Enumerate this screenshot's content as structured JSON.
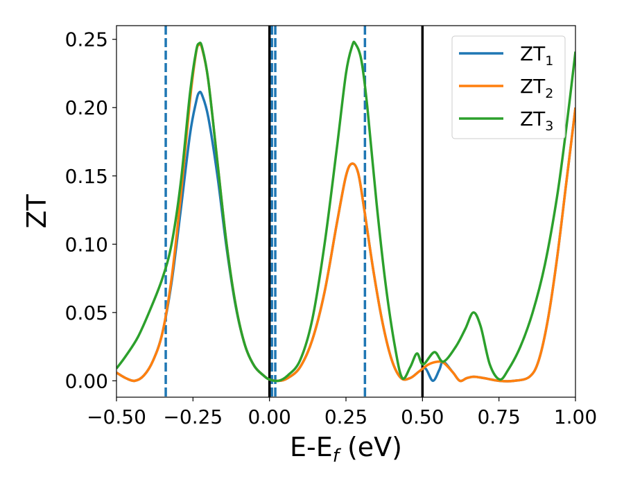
{
  "chart_data": {
    "type": "line",
    "title": "",
    "xlabel": "E-E_f (eV)",
    "xlabel_main": "E-E",
    "xlabel_sub": "f",
    "xlabel_tail": " (eV)",
    "ylabel": "ZT",
    "xlim": [
      -0.5,
      1.0
    ],
    "ylim": [
      -0.012,
      0.26
    ],
    "xticks": [
      -0.5,
      -0.25,
      0.0,
      0.25,
      0.5,
      0.75,
      1.0
    ],
    "xtick_labels": [
      "−0.50",
      "−0.25",
      "0.00",
      "0.25",
      "0.50",
      "0.75",
      "1.00"
    ],
    "yticks": [
      0.0,
      0.05,
      0.1,
      0.15,
      0.2,
      0.25
    ],
    "ytick_labels": [
      "0.00",
      "0.05",
      "0.10",
      "0.15",
      "0.20",
      "0.25"
    ],
    "grid": false,
    "legend_position": "top-right",
    "vlines_solid": [
      0.0,
      0.5
    ],
    "vlines_dashed": [
      -0.339,
      0.008,
      0.019,
      0.312
    ],
    "vline_solid_color": "#000000",
    "vline_dashed_color": "#1f77b4",
    "series": [
      {
        "name": "ZT1",
        "label_main": "ZT",
        "label_sub": "1",
        "color": "#1f77b4",
        "points": [
          [
            -0.5,
            0.006
          ],
          [
            -0.47,
            0.002
          ],
          [
            -0.44,
            0.0
          ],
          [
            -0.41,
            0.004
          ],
          [
            -0.38,
            0.015
          ],
          [
            -0.35,
            0.035
          ],
          [
            -0.32,
            0.072
          ],
          [
            -0.29,
            0.125
          ],
          [
            -0.26,
            0.18
          ],
          [
            -0.24,
            0.204
          ],
          [
            -0.23,
            0.211
          ],
          [
            -0.22,
            0.209
          ],
          [
            -0.2,
            0.193
          ],
          [
            -0.17,
            0.15
          ],
          [
            -0.14,
            0.097
          ],
          [
            -0.11,
            0.054
          ],
          [
            -0.08,
            0.026
          ],
          [
            -0.05,
            0.011
          ],
          [
            -0.02,
            0.004
          ],
          [
            0.0,
            0.001
          ],
          [
            0.03,
            0.0
          ],
          [
            0.06,
            0.002
          ],
          [
            0.1,
            0.01
          ],
          [
            0.14,
            0.03
          ],
          [
            0.18,
            0.065
          ],
          [
            0.22,
            0.115
          ],
          [
            0.25,
            0.15
          ],
          [
            0.27,
            0.159
          ],
          [
            0.29,
            0.152
          ],
          [
            0.31,
            0.125
          ],
          [
            0.34,
            0.08
          ],
          [
            0.37,
            0.042
          ],
          [
            0.4,
            0.015
          ],
          [
            0.43,
            0.002
          ],
          [
            0.46,
            0.002
          ],
          [
            0.49,
            0.007
          ],
          [
            0.51,
            0.009
          ],
          [
            0.534,
            0.0
          ],
          [
            0.555,
            0.008
          ],
          [
            0.568,
            0.014
          ],
          [
            0.6,
            0.006
          ],
          [
            0.622,
            0.0
          ],
          [
            0.645,
            0.002
          ],
          [
            0.668,
            0.003
          ],
          [
            0.7,
            0.002
          ],
          [
            0.75,
            0.0
          ],
          [
            0.8,
            0.0
          ],
          [
            0.85,
            0.003
          ],
          [
            0.88,
            0.015
          ],
          [
            0.91,
            0.045
          ],
          [
            0.94,
            0.09
          ],
          [
            0.97,
            0.145
          ],
          [
            1.0,
            0.2
          ]
        ]
      },
      {
        "name": "ZT2",
        "label_main": "ZT",
        "label_sub": "2",
        "color": "#ff7f0e",
        "points": [
          [
            -0.5,
            0.006
          ],
          [
            -0.47,
            0.002
          ],
          [
            -0.44,
            0.0
          ],
          [
            -0.41,
            0.004
          ],
          [
            -0.38,
            0.015
          ],
          [
            -0.35,
            0.035
          ],
          [
            -0.32,
            0.075
          ],
          [
            -0.29,
            0.135
          ],
          [
            -0.26,
            0.205
          ],
          [
            -0.24,
            0.24
          ],
          [
            -0.23,
            0.246
          ],
          [
            -0.22,
            0.243
          ],
          [
            -0.2,
            0.22
          ],
          [
            -0.17,
            0.16
          ],
          [
            -0.14,
            0.1
          ],
          [
            -0.11,
            0.055
          ],
          [
            -0.08,
            0.026
          ],
          [
            -0.05,
            0.011
          ],
          [
            -0.02,
            0.004
          ],
          [
            0.0,
            0.001
          ],
          [
            0.03,
            0.0
          ],
          [
            0.06,
            0.002
          ],
          [
            0.1,
            0.01
          ],
          [
            0.14,
            0.03
          ],
          [
            0.18,
            0.065
          ],
          [
            0.22,
            0.115
          ],
          [
            0.25,
            0.15
          ],
          [
            0.27,
            0.159
          ],
          [
            0.29,
            0.152
          ],
          [
            0.31,
            0.125
          ],
          [
            0.34,
            0.08
          ],
          [
            0.37,
            0.042
          ],
          [
            0.4,
            0.015
          ],
          [
            0.43,
            0.002
          ],
          [
            0.46,
            0.002
          ],
          [
            0.49,
            0.007
          ],
          [
            0.52,
            0.012
          ],
          [
            0.55,
            0.014
          ],
          [
            0.57,
            0.013
          ],
          [
            0.6,
            0.006
          ],
          [
            0.622,
            0.0
          ],
          [
            0.645,
            0.002
          ],
          [
            0.668,
            0.003
          ],
          [
            0.7,
            0.002
          ],
          [
            0.75,
            0.0
          ],
          [
            0.8,
            0.0
          ],
          [
            0.85,
            0.003
          ],
          [
            0.88,
            0.015
          ],
          [
            0.91,
            0.045
          ],
          [
            0.94,
            0.09
          ],
          [
            0.97,
            0.145
          ],
          [
            1.0,
            0.2
          ]
        ]
      },
      {
        "name": "ZT3",
        "label_main": "ZT",
        "label_sub": "3",
        "color": "#2ca02c",
        "points": [
          [
            -0.5,
            0.009
          ],
          [
            -0.47,
            0.018
          ],
          [
            -0.43,
            0.032
          ],
          [
            -0.39,
            0.052
          ],
          [
            -0.35,
            0.075
          ],
          [
            -0.32,
            0.1
          ],
          [
            -0.29,
            0.145
          ],
          [
            -0.26,
            0.21
          ],
          [
            -0.24,
            0.241
          ],
          [
            -0.23,
            0.247
          ],
          [
            -0.22,
            0.244
          ],
          [
            -0.2,
            0.22
          ],
          [
            -0.17,
            0.16
          ],
          [
            -0.14,
            0.1
          ],
          [
            -0.11,
            0.055
          ],
          [
            -0.08,
            0.026
          ],
          [
            -0.05,
            0.011
          ],
          [
            -0.02,
            0.004
          ],
          [
            0.0,
            0.001
          ],
          [
            0.03,
            0.0
          ],
          [
            0.06,
            0.004
          ],
          [
            0.1,
            0.015
          ],
          [
            0.14,
            0.045
          ],
          [
            0.18,
            0.1
          ],
          [
            0.22,
            0.17
          ],
          [
            0.25,
            0.225
          ],
          [
            0.27,
            0.245
          ],
          [
            0.28,
            0.247
          ],
          [
            0.3,
            0.235
          ],
          [
            0.32,
            0.2
          ],
          [
            0.35,
            0.13
          ],
          [
            0.38,
            0.07
          ],
          [
            0.41,
            0.025
          ],
          [
            0.434,
            0.002
          ],
          [
            0.46,
            0.01
          ],
          [
            0.482,
            0.02
          ],
          [
            0.502,
            0.012
          ],
          [
            0.539,
            0.021
          ],
          [
            0.568,
            0.014
          ],
          [
            0.609,
            0.025
          ],
          [
            0.64,
            0.038
          ],
          [
            0.666,
            0.05
          ],
          [
            0.69,
            0.04
          ],
          [
            0.72,
            0.012
          ],
          [
            0.752,
            0.001
          ],
          [
            0.78,
            0.008
          ],
          [
            0.82,
            0.025
          ],
          [
            0.86,
            0.05
          ],
          [
            0.9,
            0.085
          ],
          [
            0.94,
            0.135
          ],
          [
            0.97,
            0.185
          ],
          [
            1.0,
            0.241
          ]
        ]
      }
    ]
  }
}
